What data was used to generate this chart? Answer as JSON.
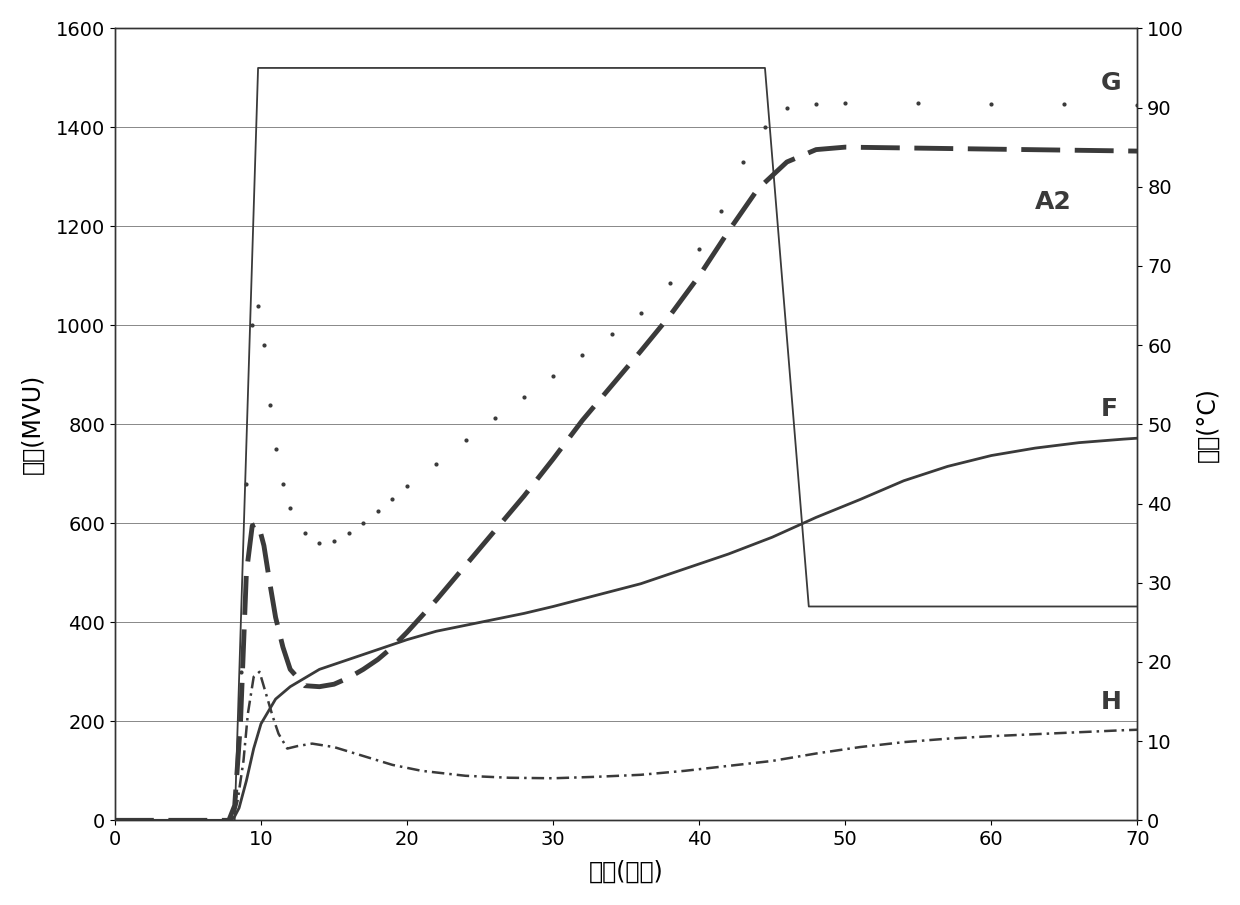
{
  "xlabel": "时间(分钟)",
  "ylabel_left": "粘度(MVU)",
  "ylabel_right": "温度(°C)",
  "xlim": [
    0,
    70
  ],
  "ylim_left": [
    0,
    1600
  ],
  "ylim_right": [
    0,
    100
  ],
  "xticks": [
    0,
    10,
    20,
    30,
    40,
    50,
    60,
    70
  ],
  "yticks_left": [
    0,
    200,
    400,
    600,
    800,
    1000,
    1200,
    1400,
    1600
  ],
  "yticks_right": [
    0,
    10,
    20,
    30,
    40,
    50,
    60,
    70,
    80,
    90,
    100
  ],
  "background_color": "#ffffff",
  "line_color": "#3a3a3a",
  "label_G": "G",
  "label_A2": "A2",
  "label_F": "F",
  "label_H": "H",
  "temp_profile": {
    "x": [
      0,
      8.2,
      9.8,
      10.5,
      30.0,
      44.5,
      47.5,
      70
    ],
    "y": [
      0,
      0,
      95,
      95,
      95,
      95,
      27,
      27
    ]
  },
  "curve_F": {
    "x": [
      0,
      7.8,
      8.0,
      8.2,
      8.5,
      9.0,
      9.5,
      10.0,
      11.0,
      12.0,
      14.0,
      16.0,
      18.0,
      20.0,
      22.0,
      25.0,
      28.0,
      30.0,
      33.0,
      36.0,
      39.0,
      42.0,
      45.0,
      48.0,
      51.0,
      54.0,
      57.0,
      60.0,
      63.0,
      66.0,
      69.0,
      70.0
    ],
    "y": [
      0,
      0,
      2,
      8,
      25,
      80,
      145,
      195,
      245,
      270,
      305,
      325,
      345,
      365,
      382,
      400,
      418,
      432,
      455,
      478,
      508,
      538,
      572,
      612,
      648,
      686,
      715,
      737,
      752,
      763,
      770,
      772
    ]
  },
  "curve_G": {
    "x": [
      0,
      7.8,
      8.2,
      8.6,
      9.0,
      9.4,
      9.8,
      10.2,
      10.6,
      11.0,
      11.5,
      12.0,
      13.0,
      14.0,
      15.0,
      16.0,
      17.0,
      18.0,
      19.0,
      20.0,
      22.0,
      24.0,
      26.0,
      28.0,
      30.0,
      32.0,
      34.0,
      36.0,
      38.0,
      40.0,
      41.5,
      43.0,
      44.5,
      46.0,
      48.0,
      50.0,
      55.0,
      60.0,
      65.0,
      70.0
    ],
    "y": [
      0,
      0,
      50,
      300,
      680,
      1000,
      1040,
      960,
      840,
      750,
      680,
      630,
      580,
      560,
      565,
      580,
      600,
      625,
      650,
      675,
      720,
      768,
      812,
      855,
      898,
      940,
      982,
      1025,
      1085,
      1155,
      1230,
      1330,
      1400,
      1440,
      1448,
      1450,
      1450,
      1448,
      1447,
      1446
    ]
  },
  "curve_A2": {
    "x": [
      0,
      7.8,
      8.2,
      8.6,
      9.0,
      9.4,
      9.8,
      10.2,
      10.6,
      11.0,
      11.5,
      12.0,
      13.0,
      14.0,
      15.0,
      16.0,
      17.0,
      18.0,
      19.0,
      20.0,
      22.0,
      24.0,
      26.0,
      28.0,
      30.0,
      32.0,
      34.0,
      36.0,
      38.0,
      40.0,
      42.0,
      44.0,
      46.0,
      48.0,
      50.0,
      55.0,
      60.0,
      65.0,
      70.0
    ],
    "y": [
      0,
      0,
      30,
      200,
      500,
      595,
      600,
      555,
      480,
      410,
      350,
      305,
      272,
      270,
      275,
      288,
      305,
      325,
      350,
      380,
      445,
      515,
      585,
      655,
      730,
      808,
      878,
      948,
      1020,
      1100,
      1190,
      1275,
      1330,
      1355,
      1360,
      1358,
      1356,
      1354,
      1352
    ]
  },
  "curve_H": {
    "x": [
      0,
      7.8,
      8.1,
      8.4,
      8.8,
      9.1,
      9.5,
      9.9,
      10.3,
      10.8,
      11.2,
      11.8,
      12.5,
      13.5,
      15.0,
      17.0,
      19.0,
      21.0,
      24.0,
      27.0,
      30.0,
      33.0,
      36.0,
      39.0,
      42.0,
      45.0,
      48.0,
      51.0,
      54.0,
      57.0,
      60.0,
      63.0,
      66.0,
      69.0,
      70.0
    ],
    "y": [
      0,
      0,
      5,
      40,
      120,
      215,
      290,
      300,
      260,
      210,
      175,
      145,
      150,
      155,
      148,
      130,
      112,
      100,
      90,
      86,
      85,
      88,
      92,
      100,
      110,
      120,
      135,
      148,
      158,
      165,
      170,
      174,
      178,
      182,
      183
    ]
  }
}
